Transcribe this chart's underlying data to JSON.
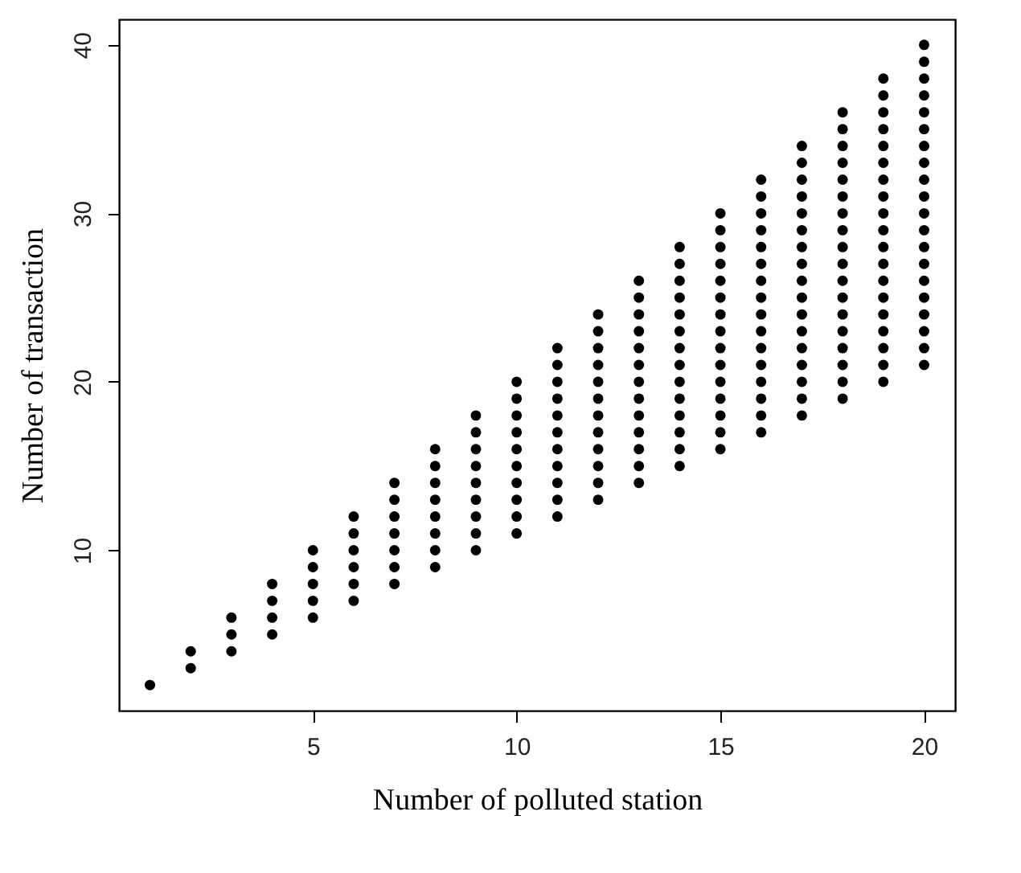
{
  "chart_data": {
    "type": "scatter",
    "xlabel": "Number of polluted station",
    "ylabel": "Number of transaction",
    "xlim": [
      0.24,
      20.76
    ],
    "ylim": [
      0.48,
      41.52
    ],
    "xticks": [
      5,
      10,
      15,
      20
    ],
    "yticks": [
      10,
      20,
      30,
      40
    ],
    "grid": false,
    "legend": false,
    "marker": "circle",
    "series": [
      {
        "color": "#000000",
        "x": [
          1
        ],
        "values": [
          2
        ]
      },
      {
        "color": "#000000",
        "x": [
          2,
          2
        ],
        "values": [
          3,
          4
        ]
      },
      {
        "color": "#000000",
        "x": [
          3,
          3,
          3
        ],
        "values": [
          4,
          5,
          6
        ]
      },
      {
        "color": "#000000",
        "x": [
          4,
          4,
          4,
          4
        ],
        "values": [
          5,
          6,
          7,
          8
        ]
      },
      {
        "color": "#000000",
        "x": [
          5,
          5,
          5,
          5,
          5
        ],
        "values": [
          6,
          7,
          8,
          9,
          10
        ]
      },
      {
        "color": "#000000",
        "x": [
          6,
          6,
          6,
          6,
          6,
          6
        ],
        "values": [
          7,
          8,
          9,
          10,
          11,
          12
        ]
      },
      {
        "color": "#000000",
        "x": [
          7,
          7,
          7,
          7,
          7,
          7,
          7
        ],
        "values": [
          8,
          9,
          10,
          11,
          12,
          13,
          14
        ]
      },
      {
        "color": "#000000",
        "x": [
          8,
          8,
          8,
          8,
          8,
          8,
          8,
          8
        ],
        "values": [
          9,
          10,
          11,
          12,
          13,
          14,
          15,
          16
        ]
      },
      {
        "color": "#000000",
        "x": [
          9,
          9,
          9,
          9,
          9,
          9,
          9,
          9,
          9
        ],
        "values": [
          10,
          11,
          12,
          13,
          14,
          15,
          16,
          17,
          18
        ]
      },
      {
        "color": "#000000",
        "x": [
          10,
          10,
          10,
          10,
          10,
          10,
          10,
          10,
          10,
          10
        ],
        "values": [
          11,
          12,
          13,
          14,
          15,
          16,
          17,
          18,
          19,
          20
        ]
      },
      {
        "color": "#000000",
        "x": [
          11,
          11,
          11,
          11,
          11,
          11,
          11,
          11,
          11,
          11,
          11
        ],
        "values": [
          12,
          13,
          14,
          15,
          16,
          17,
          18,
          19,
          20,
          21,
          22
        ]
      },
      {
        "color": "#000000",
        "x": [
          12,
          12,
          12,
          12,
          12,
          12,
          12,
          12,
          12,
          12,
          12,
          12
        ],
        "values": [
          13,
          14,
          15,
          16,
          17,
          18,
          19,
          20,
          21,
          22,
          23,
          24
        ]
      },
      {
        "color": "#000000",
        "x": [
          13,
          13,
          13,
          13,
          13,
          13,
          13,
          13,
          13,
          13,
          13,
          13,
          13
        ],
        "values": [
          14,
          15,
          16,
          17,
          18,
          19,
          20,
          21,
          22,
          23,
          24,
          25,
          26
        ]
      },
      {
        "color": "#000000",
        "x": [
          14,
          14,
          14,
          14,
          14,
          14,
          14,
          14,
          14,
          14,
          14,
          14,
          14,
          14
        ],
        "values": [
          15,
          16,
          17,
          18,
          19,
          20,
          21,
          22,
          23,
          24,
          25,
          26,
          27,
          28
        ]
      },
      {
        "color": "#000000",
        "x": [
          15,
          15,
          15,
          15,
          15,
          15,
          15,
          15,
          15,
          15,
          15,
          15,
          15,
          15,
          15
        ],
        "values": [
          16,
          17,
          18,
          19,
          20,
          21,
          22,
          23,
          24,
          25,
          26,
          27,
          28,
          29,
          30
        ]
      },
      {
        "color": "#000000",
        "x": [
          16,
          16,
          16,
          16,
          16,
          16,
          16,
          16,
          16,
          16,
          16,
          16,
          16,
          16,
          16,
          16
        ],
        "values": [
          17,
          18,
          19,
          20,
          21,
          22,
          23,
          24,
          25,
          26,
          27,
          28,
          29,
          30,
          31,
          32
        ]
      },
      {
        "color": "#000000",
        "x": [
          17,
          17,
          17,
          17,
          17,
          17,
          17,
          17,
          17,
          17,
          17,
          17,
          17,
          17,
          17,
          17,
          17
        ],
        "values": [
          18,
          19,
          20,
          21,
          22,
          23,
          24,
          25,
          26,
          27,
          28,
          29,
          30,
          31,
          32,
          33,
          34
        ]
      },
      {
        "color": "#000000",
        "x": [
          18,
          18,
          18,
          18,
          18,
          18,
          18,
          18,
          18,
          18,
          18,
          18,
          18,
          18,
          18,
          18,
          18,
          18
        ],
        "values": [
          19,
          20,
          21,
          22,
          23,
          24,
          25,
          26,
          27,
          28,
          29,
          30,
          31,
          32,
          33,
          34,
          35,
          36
        ]
      },
      {
        "color": "#000000",
        "x": [
          19,
          19,
          19,
          19,
          19,
          19,
          19,
          19,
          19,
          19,
          19,
          19,
          19,
          19,
          19,
          19,
          19,
          19,
          19
        ],
        "values": [
          20,
          21,
          22,
          23,
          24,
          25,
          26,
          27,
          28,
          29,
          30,
          31,
          32,
          33,
          34,
          35,
          36,
          37,
          38
        ]
      },
      {
        "color": "#000000",
        "x": [
          20,
          20,
          20,
          20,
          20,
          20,
          20,
          20,
          20,
          20,
          20,
          20,
          20,
          20,
          20,
          20,
          20,
          20,
          20,
          20
        ],
        "values": [
          21,
          22,
          23,
          24,
          25,
          26,
          27,
          28,
          29,
          30,
          31,
          32,
          33,
          34,
          35,
          36,
          37,
          38,
          39,
          40
        ]
      }
    ]
  }
}
